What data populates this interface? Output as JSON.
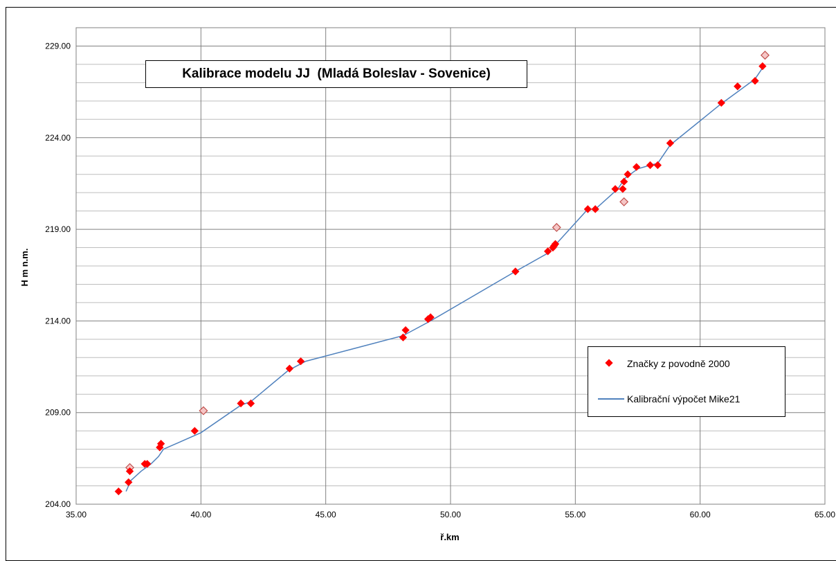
{
  "chart_data": {
    "type": "scatter",
    "title": "Kalibrace modelu JJ  (Mladá Boleslav - Sovenice)",
    "xlabel": "ř.km",
    "ylabel": "H m n.m.",
    "xlim": [
      35,
      65
    ],
    "ylim": [
      204,
      230
    ],
    "x_ticks": [
      "35.00",
      "40.00",
      "45.00",
      "50.00",
      "55.00",
      "60.00",
      "65.00"
    ],
    "y_ticks": [
      "204.00",
      "209.00",
      "214.00",
      "219.00",
      "224.00",
      "229.00"
    ],
    "grid": true,
    "legend_position": "bottom-right",
    "series": [
      {
        "name": "Značky z povodně 2000",
        "kind": "markers",
        "color": "#ff0000",
        "points": [
          [
            36.7,
            204.7
          ],
          [
            37.1,
            205.2
          ],
          [
            37.15,
            205.8
          ],
          [
            37.75,
            206.2
          ],
          [
            37.85,
            206.2
          ],
          [
            38.35,
            207.1
          ],
          [
            38.4,
            207.3
          ],
          [
            39.75,
            208.0
          ],
          [
            41.6,
            209.5
          ],
          [
            42.0,
            209.5
          ],
          [
            43.55,
            211.4
          ],
          [
            44.0,
            211.8
          ],
          [
            48.1,
            213.1
          ],
          [
            48.2,
            213.5
          ],
          [
            49.1,
            214.1
          ],
          [
            49.2,
            214.2
          ],
          [
            52.6,
            216.7
          ],
          [
            53.9,
            217.8
          ],
          [
            54.1,
            218.0
          ],
          [
            54.2,
            218.2
          ],
          [
            54.15,
            218.1
          ],
          [
            55.5,
            220.1
          ],
          [
            55.8,
            220.1
          ],
          [
            56.6,
            221.2
          ],
          [
            56.9,
            221.2
          ],
          [
            56.95,
            221.6
          ],
          [
            57.1,
            222.0
          ],
          [
            57.45,
            222.4
          ],
          [
            58.0,
            222.5
          ],
          [
            58.3,
            222.5
          ],
          [
            58.8,
            223.7
          ],
          [
            60.85,
            225.9
          ],
          [
            61.5,
            226.8
          ],
          [
            62.2,
            227.1
          ],
          [
            62.5,
            227.9
          ]
        ]
      },
      {
        "name": "",
        "kind": "hatched-markers",
        "color": "#c0504d",
        "points": [
          [
            37.15,
            206.0
          ],
          [
            40.1,
            209.1
          ],
          [
            54.25,
            219.1
          ],
          [
            56.95,
            220.5
          ],
          [
            62.6,
            228.5
          ]
        ]
      },
      {
        "name": "Kalibrační výpočet Mike21",
        "kind": "line",
        "color": "#4f81bd",
        "points": [
          [
            37.0,
            204.7
          ],
          [
            37.2,
            205.3
          ],
          [
            37.6,
            205.8
          ],
          [
            38.0,
            206.2
          ],
          [
            38.3,
            206.6
          ],
          [
            38.5,
            207.0
          ],
          [
            40.0,
            207.9
          ],
          [
            41.6,
            209.4
          ],
          [
            42.0,
            209.6
          ],
          [
            43.5,
            211.3
          ],
          [
            44.2,
            211.8
          ],
          [
            48.1,
            213.2
          ],
          [
            49.2,
            214.0
          ],
          [
            52.6,
            216.7
          ],
          [
            53.9,
            217.7
          ],
          [
            54.3,
            218.3
          ],
          [
            55.5,
            220.1
          ],
          [
            55.8,
            220.1
          ],
          [
            56.7,
            221.2
          ],
          [
            57.0,
            221.8
          ],
          [
            57.5,
            222.3
          ],
          [
            58.0,
            222.5
          ],
          [
            58.3,
            222.6
          ],
          [
            58.8,
            223.6
          ],
          [
            60.8,
            225.8
          ],
          [
            62.2,
            227.2
          ],
          [
            62.5,
            227.8
          ]
        ]
      }
    ]
  }
}
